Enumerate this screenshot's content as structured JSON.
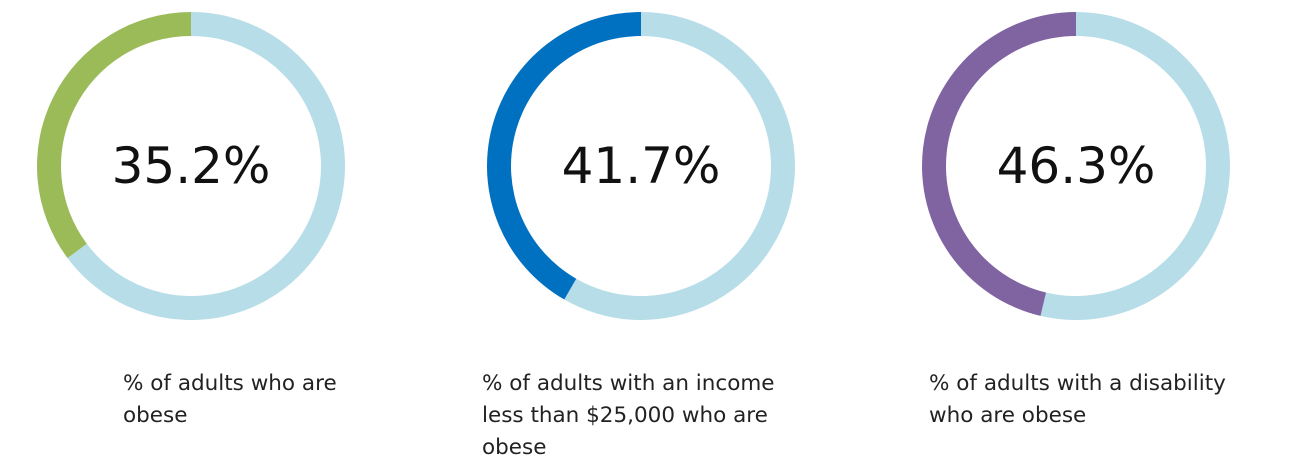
{
  "chart_data": [
    {
      "type": "pie",
      "style": "donut",
      "value": 35.2,
      "value_label": "35.2%",
      "caption": "% of adults who are obese",
      "colors": {
        "highlight": "#9BBB59",
        "remainder": "#B7DDE8"
      }
    },
    {
      "type": "pie",
      "style": "donut",
      "value": 41.7,
      "value_label": "41.7%",
      "caption": "% of adults with an income less than $25,000 who are obese",
      "colors": {
        "highlight": "#0070C0",
        "remainder": "#B7DDE8"
      }
    },
    {
      "type": "pie",
      "style": "donut",
      "value": 46.3,
      "value_label": "46.3%",
      "caption": "% of adults with a disability who are obese",
      "colors": {
        "highlight": "#8064A2",
        "remainder": "#B7DDE8"
      }
    }
  ]
}
